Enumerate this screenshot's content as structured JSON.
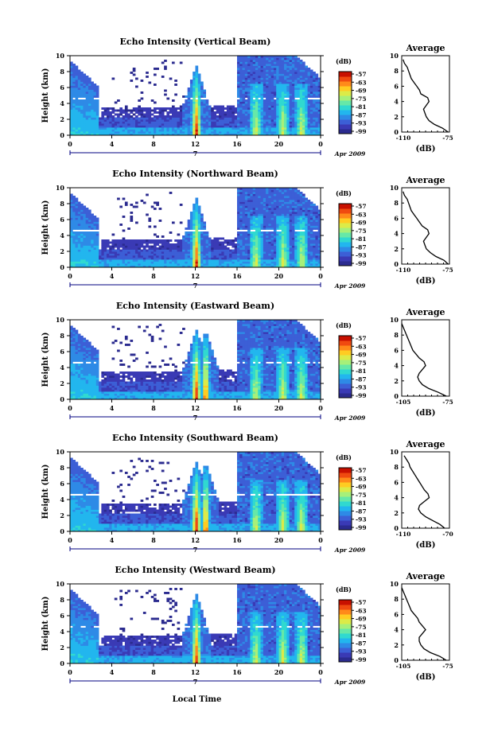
{
  "colors": {
    "background": "#ffffff",
    "axis": "#000000",
    "time_axis_line": "#000080",
    "beam_break": "#ffffff"
  },
  "colormap": [
    "#2b2b8f",
    "#3a3ab5",
    "#3c5fd6",
    "#2e8ae6",
    "#22b6ee",
    "#30d9d0",
    "#66e8a8",
    "#a6f07a",
    "#dceb48",
    "#ffcc22",
    "#ff8a1a",
    "#f04a10",
    "#c81000"
  ],
  "common": {
    "ylabel": "Height (km)",
    "xlabel": "Local Time",
    "yticks": [
      "10",
      "8",
      "6",
      "4",
      "2",
      "0"
    ],
    "xticks": [
      "0",
      "4",
      "8",
      "12",
      "16",
      "20",
      "0"
    ],
    "day": "7",
    "month_year": "Apr 2009",
    "colorbar_title": "(dB)",
    "colorbar_ticks": [
      "-57",
      "-63",
      "-69",
      "-75",
      "-81",
      "-87",
      "-93",
      "-99"
    ],
    "avg_title": "Average",
    "avg_ylabel_ticks": [
      "10",
      "8",
      "6",
      "4",
      "2",
      "0"
    ],
    "avg_xunit": "(dB)"
  },
  "chart_data": [
    {
      "type": "heatmap",
      "title": "Echo Intensity (Vertical Beam)",
      "xlabel": "",
      "ylabel": "Height (km)",
      "xlim": [
        0,
        24
      ],
      "ylim": [
        0,
        10
      ],
      "colorbar": {
        "label": "(dB)",
        "range": [
          -99,
          -57
        ]
      },
      "average_profile": {
        "xlim": [
          -110,
          -75
        ],
        "x_tick_labels": [
          "-110",
          "-75"
        ],
        "height": [
          0,
          0.5,
          1,
          1.5,
          2,
          2.5,
          3,
          3.5,
          4,
          4.5,
          5,
          5.5,
          6,
          6.5,
          7,
          7.5,
          8,
          8.5,
          9,
          9.5
        ],
        "value": [
          -76,
          -80,
          -86,
          -90,
          -92,
          -93,
          -94,
          -92,
          -90,
          -91,
          -96,
          -97,
          -99,
          -101,
          -103,
          -104,
          -105,
          -106,
          -108,
          -109
        ]
      }
    },
    {
      "type": "heatmap",
      "title": "Echo Intensity (Northward Beam)",
      "xlabel": "",
      "ylabel": "Height (km)",
      "xlim": [
        0,
        24
      ],
      "ylim": [
        0,
        10
      ],
      "colorbar": {
        "label": "(dB)",
        "range": [
          -99,
          -57
        ]
      },
      "average_profile": {
        "xlim": [
          -110,
          -75
        ],
        "x_tick_labels": [
          "-110",
          "-75"
        ],
        "height": [
          0,
          0.5,
          1,
          1.5,
          2,
          2.5,
          3,
          3.5,
          4,
          4.5,
          5,
          5.5,
          6,
          6.5,
          7,
          7.5,
          8,
          8.5,
          9,
          9.5
        ],
        "value": [
          -76,
          -79,
          -85,
          -89,
          -92,
          -93,
          -94,
          -92,
          -90,
          -91,
          -95,
          -97,
          -99,
          -101,
          -103,
          -104,
          -105,
          -106,
          -108,
          -109
        ]
      }
    },
    {
      "type": "heatmap",
      "title": "Echo Intensity (Eastward Beam)",
      "xlabel": "",
      "ylabel": "Height (km)",
      "xlim": [
        0,
        24
      ],
      "ylim": [
        0,
        10
      ],
      "colorbar": {
        "label": "(dB)",
        "range": [
          -99,
          -57
        ]
      },
      "average_profile": {
        "xlim": [
          -105,
          -75
        ],
        "x_tick_labels": [
          "-105",
          "-75"
        ],
        "height": [
          0,
          0.5,
          1,
          1.5,
          2,
          2.5,
          3,
          3.5,
          4,
          4.5,
          5,
          5.5,
          6,
          6.5,
          7,
          7.5,
          8,
          8.5,
          9,
          9.5
        ],
        "value": [
          -77,
          -82,
          -88,
          -92,
          -94,
          -95,
          -94,
          -92,
          -90,
          -91,
          -94,
          -96,
          -98,
          -99,
          -100,
          -101,
          -102,
          -103,
          -104,
          -105
        ]
      }
    },
    {
      "type": "heatmap",
      "title": "Echo Intensity (Southward Beam)",
      "xlabel": "",
      "ylabel": "Height (km)",
      "xlim": [
        0,
        24
      ],
      "ylim": [
        0,
        10
      ],
      "colorbar": {
        "label": "(dB)",
        "range": [
          -99,
          -57
        ]
      },
      "average_profile": {
        "xlim": [
          -110,
          -70
        ],
        "x_tick_labels": [
          "-110",
          "-70"
        ],
        "height": [
          0,
          0.5,
          1,
          1.5,
          2,
          2.5,
          3,
          3.5,
          4,
          4.5,
          5,
          5.5,
          6,
          6.5,
          7,
          7.5,
          8,
          8.5,
          9,
          9.5
        ],
        "value": [
          -74,
          -78,
          -84,
          -90,
          -94,
          -96,
          -95,
          -91,
          -87,
          -88,
          -91,
          -93,
          -95,
          -97,
          -99,
          -101,
          -103,
          -104,
          -106,
          -108
        ]
      }
    },
    {
      "type": "heatmap",
      "title": "Echo Intensity (Westward Beam)",
      "xlabel": "Local Time",
      "ylabel": "Height (km)",
      "xlim": [
        0,
        24
      ],
      "ylim": [
        0,
        10
      ],
      "colorbar": {
        "label": "(dB)",
        "range": [
          -99,
          -57
        ]
      },
      "average_profile": {
        "xlim": [
          -105,
          -75
        ],
        "x_tick_labels": [
          "-105",
          "-75"
        ],
        "height": [
          0,
          0.5,
          1,
          1.5,
          2,
          2.5,
          3,
          3.5,
          4,
          4.5,
          5,
          5.5,
          6,
          6.5,
          7,
          7.5,
          8,
          8.5,
          9,
          9.5
        ],
        "value": [
          -77,
          -81,
          -87,
          -91,
          -93,
          -94,
          -94,
          -92,
          -90,
          -92,
          -94,
          -95,
          -97,
          -99,
          -100,
          -101,
          -102,
          -103,
          -104,
          -105
        ]
      }
    }
  ]
}
